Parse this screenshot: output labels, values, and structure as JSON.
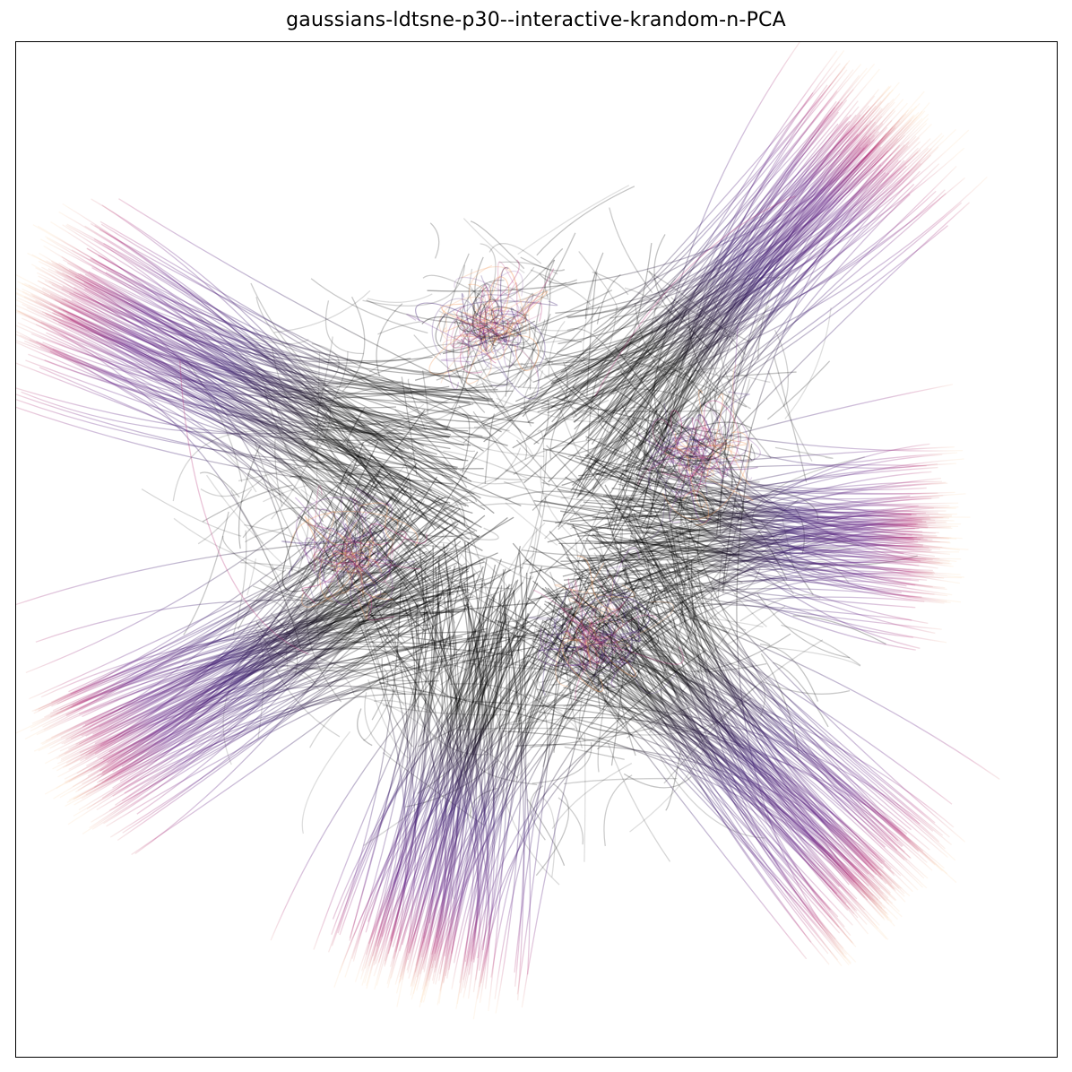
{
  "chart_data": {
    "type": "line",
    "title": "gaussians-ldtsne-p30--interactive-krandom-n-PCA",
    "xlabel": "",
    "ylabel": "",
    "axis_ticks": false,
    "grid": false,
    "legend": "none",
    "description_of_marks": "many thin semi-transparent trajectory lines; black in the central region, fading through indigo and magenta to light orange at the outer tips",
    "colors": {
      "core": "#000000",
      "indigo": "#3b1c6e",
      "purple": "#6a2a8a",
      "magenta": "#b5367a",
      "orange": "#f29a5e",
      "tip": "#fbd3a6"
    },
    "series": [
      {
        "arm": "upper-right",
        "start": [
          0.0,
          0.0
        ],
        "end": [
          0.53,
          0.59
        ]
      },
      {
        "arm": "upper-left",
        "start": [
          0.0,
          0.0
        ],
        "end": [
          -0.69,
          0.35
        ]
      },
      {
        "arm": "right",
        "start": [
          0.0,
          0.0
        ],
        "end": [
          0.6,
          -0.02
        ]
      },
      {
        "arm": "lower-right",
        "start": [
          0.0,
          0.0
        ],
        "end": [
          0.53,
          -0.53
        ]
      },
      {
        "arm": "bottom",
        "start": [
          0.0,
          0.0
        ],
        "end": [
          -0.15,
          -0.65
        ]
      },
      {
        "arm": "lower-left",
        "start": [
          0.0,
          0.0
        ],
        "end": [
          -0.65,
          -0.35
        ]
      },
      {
        "cluster": "top-center",
        "center": [
          -0.05,
          0.28
        ]
      },
      {
        "cluster": "right-of-center",
        "center": [
          0.24,
          0.1
        ]
      },
      {
        "cluster": "left-of-center",
        "center": [
          -0.24,
          -0.04
        ]
      },
      {
        "cluster": "below-center",
        "center": [
          0.1,
          -0.16
        ]
      }
    ]
  }
}
